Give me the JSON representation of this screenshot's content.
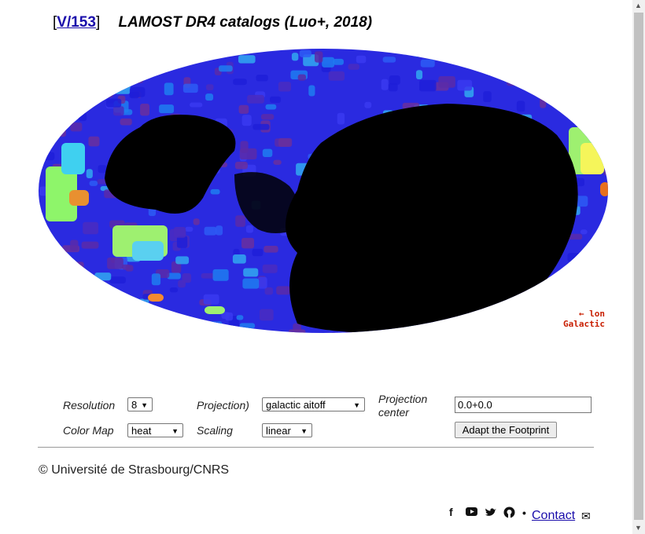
{
  "header": {
    "catalog_id": "V/153",
    "catalog_title": "LAMOST DR4 catalogs (Luo+, 2018)"
  },
  "map": {
    "label_line1": "← lon",
    "label_line2": "Galactic"
  },
  "controls": {
    "resolution_label": "Resolution",
    "resolution_value": "8",
    "projection_label": "Projection)",
    "projection_value": "galactic aitoff",
    "projection_center_label": "Projection center",
    "projection_center_value": "0.0+0.0",
    "colormap_label": "Color Map",
    "colormap_value": "heat",
    "scaling_label": "Scaling",
    "scaling_value": "linear",
    "adapt_button": "Adapt the Footprint"
  },
  "footer": {
    "copyright": "© Université de Strasbourg/CNRS",
    "contact": "Contact",
    "icons": [
      "facebook-icon",
      "youtube-icon",
      "twitter-icon",
      "github-icon"
    ]
  },
  "colors": {
    "link": "#1a0dab",
    "label_red": "#c81e00",
    "sky_bg": "#000000"
  }
}
